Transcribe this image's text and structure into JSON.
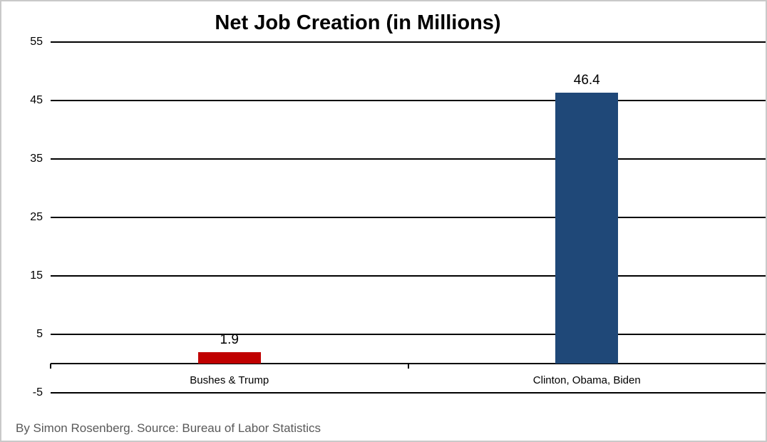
{
  "chart_data": {
    "type": "bar",
    "title": "Net Job Creation (in Millions)",
    "categories": [
      "Bushes & Trump",
      "Clinton, Obama, Biden"
    ],
    "values": [
      1.9,
      46.4
    ],
    "value_labels": [
      "1.9",
      "46.4"
    ],
    "series": [
      {
        "name": "Net Job Creation",
        "values": [
          1.9,
          46.4
        ]
      }
    ],
    "bar_colors": [
      "#c00000",
      "#1f4878"
    ],
    "yticks": [
      55,
      45,
      35,
      25,
      15,
      5,
      -5
    ],
    "ytick_labels": [
      "55",
      "45",
      "35",
      "25",
      "15",
      "5",
      "-5"
    ],
    "ylim": [
      -5,
      55
    ],
    "axis_at": 0,
    "grid": true,
    "legend": false,
    "xlabel": "",
    "ylabel": ""
  },
  "footer": {
    "caption": "By Simon Rosenberg. Source: Bureau of Labor Statistics"
  },
  "colors": {
    "background": "#ffffff",
    "grid": "#000000",
    "title_text": "#000000",
    "footer_text": "#595959",
    "frame_border": "#c9c9c9",
    "bar_negative_group": "#c00000",
    "bar_positive_group": "#1f4878"
  }
}
